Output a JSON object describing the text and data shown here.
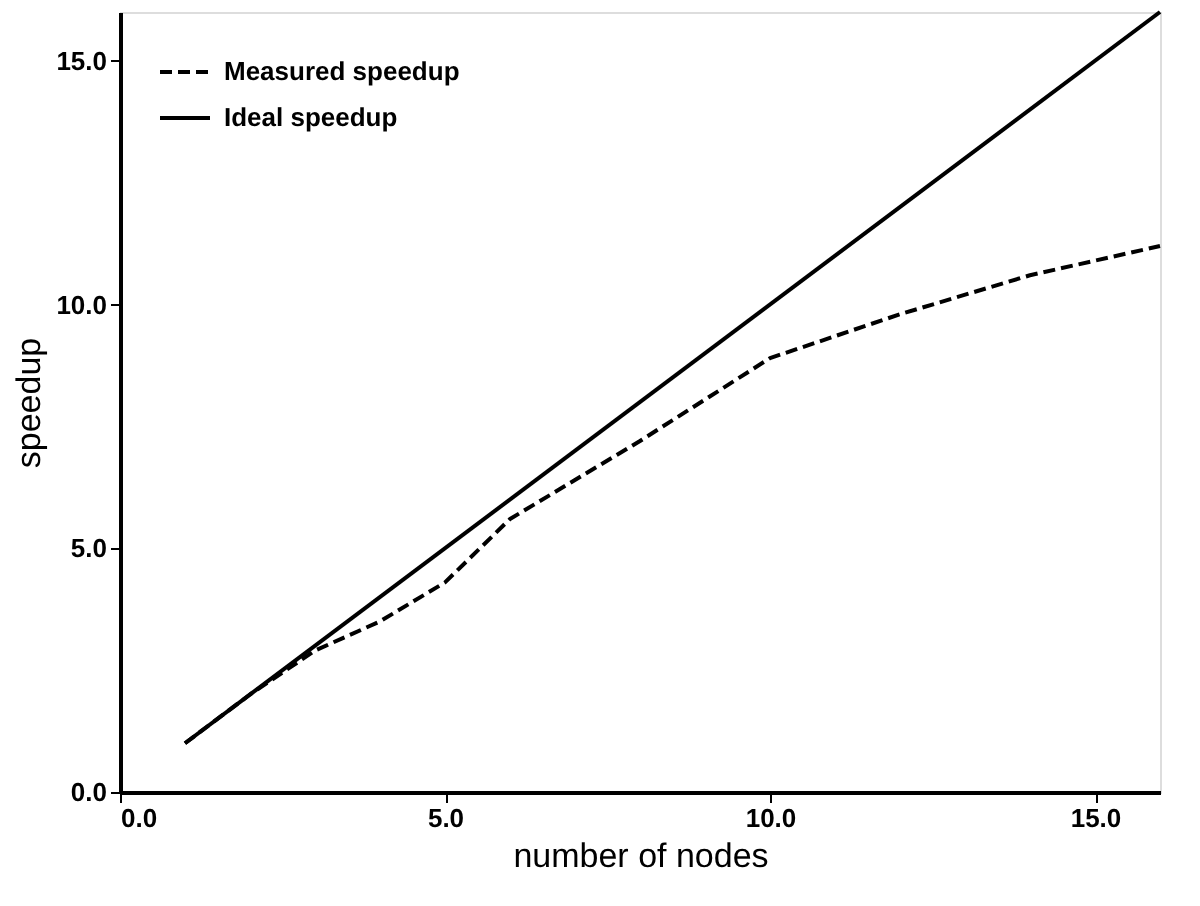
{
  "chart_data": {
    "type": "line",
    "xlabel": "number of nodes",
    "ylabel": "speedup",
    "xlim": [
      0,
      16
    ],
    "ylim": [
      0,
      16
    ],
    "xticks": [
      {
        "value": 0,
        "label": "0.0"
      },
      {
        "value": 5,
        "label": "5.0"
      },
      {
        "value": 10,
        "label": "10.0"
      },
      {
        "value": 15,
        "label": "15.0"
      }
    ],
    "yticks": [
      {
        "value": 0,
        "label": "0.0"
      },
      {
        "value": 5,
        "label": "5.0"
      },
      {
        "value": 10,
        "label": "10.0"
      },
      {
        "value": 15,
        "label": "15.0"
      }
    ],
    "grid": false,
    "legend": "top left",
    "marker": "none",
    "series": [
      {
        "name": "Measured speedup",
        "color": "#000000",
        "line_style": "dashed",
        "x": [
          1,
          2,
          3,
          4,
          5,
          6,
          8,
          10,
          12,
          14,
          16
        ],
        "values": [
          1,
          2,
          2.9,
          3.5,
          4.3,
          5.6,
          7.2,
          8.9,
          9.8,
          10.6,
          11.2
        ]
      },
      {
        "name": "Ideal speedup",
        "color": "#000000",
        "line_style": "solid",
        "x": [
          1,
          16
        ],
        "values": [
          1,
          16
        ]
      }
    ]
  }
}
